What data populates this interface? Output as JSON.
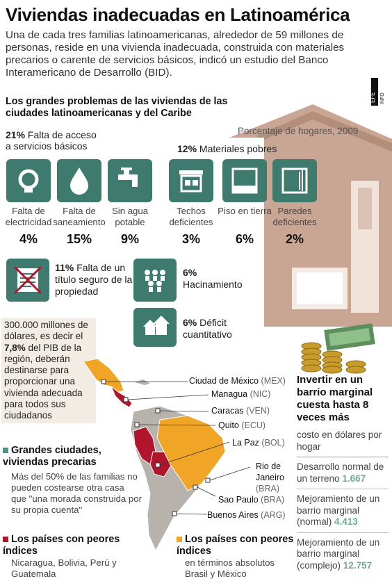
{
  "header": {
    "title": "Viviendas inadecuadas en Latinoamérica",
    "intro": "Una de cada tres familias latinoamericanas, alrededor de 59 millones de personas, reside en una vivienda inadecuada, construida con materiales precarios o carente de servicios básicos, indicó un estudio del Banco Interamericano de Desarrollo (BID).",
    "agency_logo": "EFE INFOGRAFÍA"
  },
  "problems": {
    "title": "Los grandes problemas de las viviendas de las ciudades latinoamericanas y del Caribe",
    "subtitle": "Porcentaje de hogares, 2009",
    "services": {
      "pct": "21%",
      "label": "Falta de acceso a servicios básicos"
    },
    "materials": {
      "pct": "12%",
      "label": "Materiales pobres"
    },
    "items": [
      {
        "icon": "lightbulb-icon",
        "label": "Falta de electricidad",
        "value": "4%"
      },
      {
        "icon": "water-drop-icon",
        "label": "Falta de saneamiento",
        "value": "15%"
      },
      {
        "icon": "faucet-icon",
        "label": "Sin agua potable",
        "value": "9%"
      },
      {
        "icon": "roof-icon",
        "label": "Techos deficientes",
        "value": "3%"
      },
      {
        "icon": "floor-icon",
        "label": "Piso en tierra",
        "value": "6%"
      },
      {
        "icon": "wall-icon",
        "label": "Paredes deficientes",
        "value": "2%"
      }
    ],
    "title_deed": {
      "pct": "11%",
      "label": "Falta de un título seguro de la propiedad"
    },
    "crowding": {
      "pct": "6%",
      "label": "Hacinamiento"
    },
    "deficit": {
      "pct": "6%",
      "label": "Déficit cuantitativo"
    }
  },
  "callout": {
    "pre": "300.000 millones de dólares, es decir el ",
    "highlight": "7,8%",
    "post": " del PIB de la región, deberán destinarse para proporcionar una vivienda adecuada para todos sus ciudadanos"
  },
  "map": {
    "cities": [
      {
        "name": "Ciudad de México",
        "code": "(MEX)"
      },
      {
        "name": "Managua",
        "code": "(NIC)"
      },
      {
        "name": "Caracas",
        "code": "(VEN)"
      },
      {
        "name": "Quito",
        "code": "(ECU)"
      },
      {
        "name": "La Paz",
        "code": "(BOL)"
      },
      {
        "name": "Rio de Janeiro",
        "code": "(BRA)"
      },
      {
        "name": "Sao Paulo",
        "code": "(BRA)"
      },
      {
        "name": "Buenos Aires",
        "code": "(ARG)"
      }
    ],
    "colors": {
      "teal": "#4f9384",
      "red": "#b0152b",
      "orange": "#f0a526",
      "gray": "#b8b2ac"
    }
  },
  "legend": {
    "big_cities": {
      "title": "Grandes ciudades, viviendas precarias",
      "text": "Más del 50% de las familias no pueden costearse otra casa que \"una morada construida por su propia cuenta\""
    },
    "worst": {
      "title": "Los países con peores índices",
      "text": "Nicaragua, Bolivia, Perú y Guatemala"
    },
    "worst_absolute": {
      "title": "Los países con peores índices",
      "subtitle": "en términos absolutos",
      "text": "Brasil y México"
    }
  },
  "costs": {
    "title": "Invertir en un barrio marginal cuesta hasta 8 veces más",
    "unit": "costo en dólares por hogar",
    "rows": [
      {
        "label": "Desarrollo normal de un terreno",
        "value": "1.667"
      },
      {
        "label": "Mejoramiento de un barrio marginal (normal)",
        "value": "4.413"
      },
      {
        "label": "Mejoramiento de un barrio marginal (complejo)",
        "value": "12.757"
      }
    ]
  }
}
